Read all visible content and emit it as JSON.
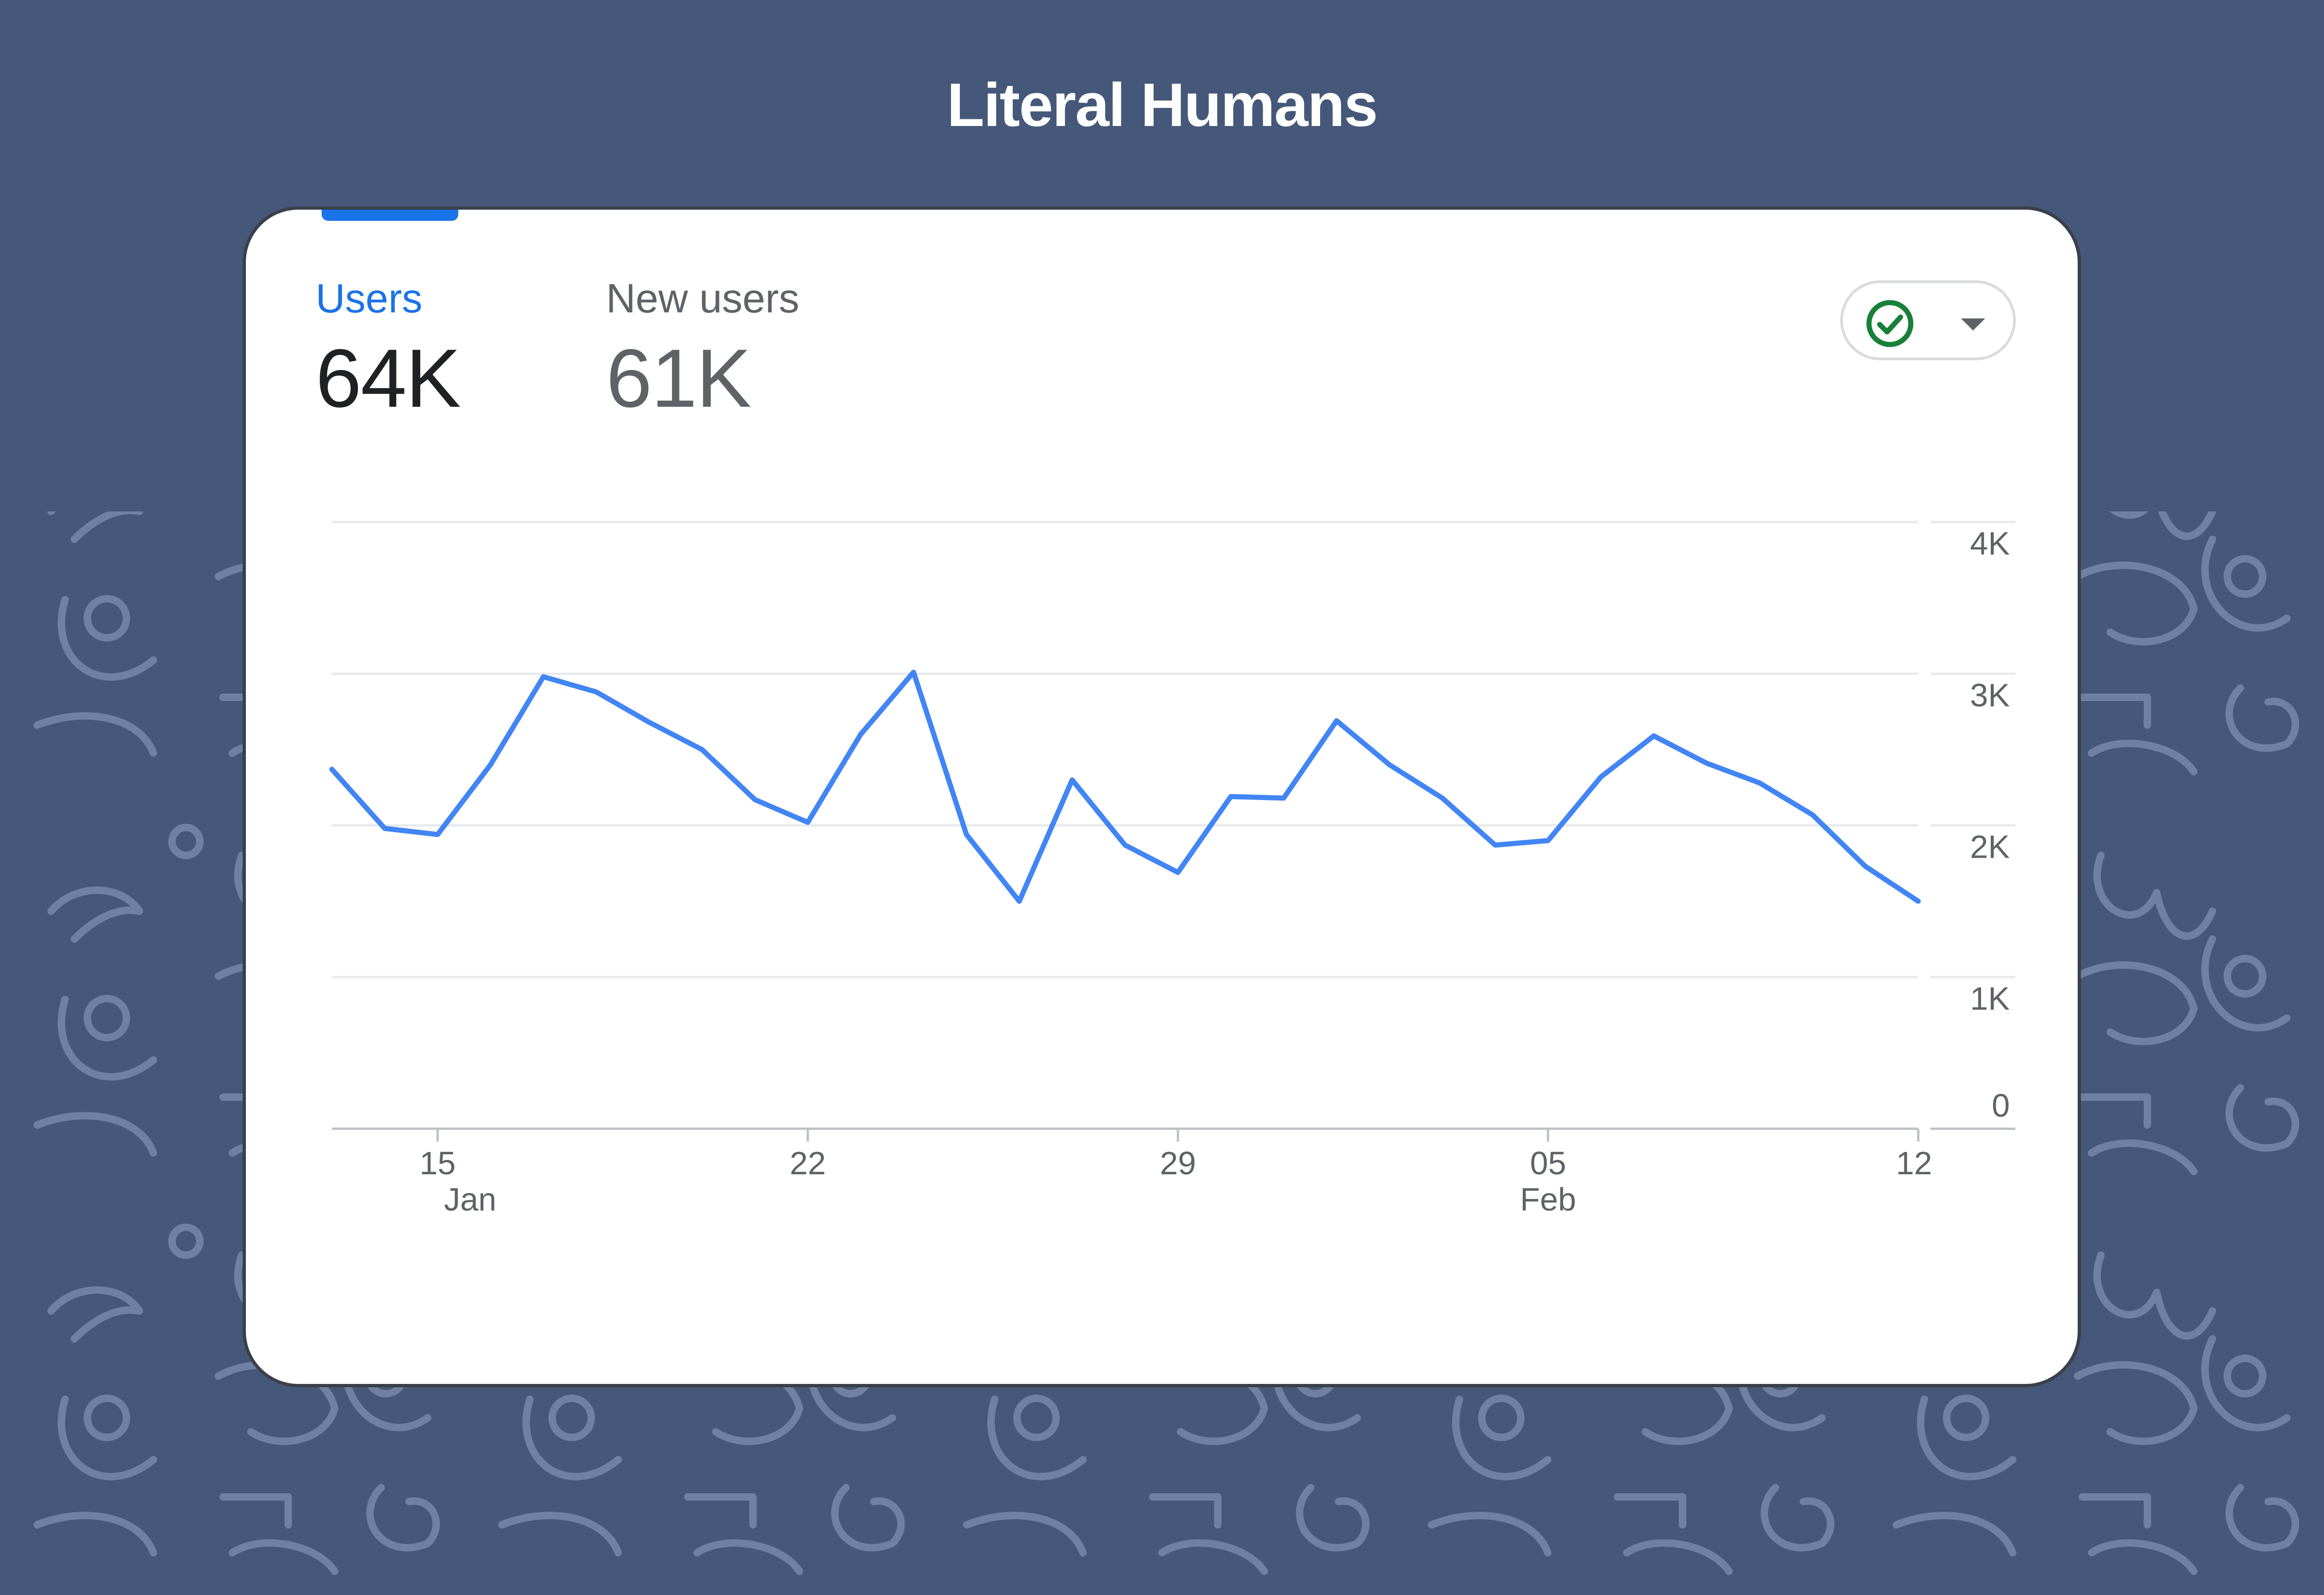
{
  "title": "Literal Humans",
  "metrics": {
    "users": {
      "label": "Users",
      "value": "64K"
    },
    "new_users": {
      "label": "New users",
      "value": "61K"
    }
  },
  "colors": {
    "background": "#465879",
    "accent": "#1a73e8",
    "line": "#4285f4",
    "check": "#188038"
  },
  "icons": {
    "status": "check-circle-icon",
    "dropdown": "caret-down-icon"
  },
  "chart_data": {
    "type": "line",
    "title": "",
    "xlabel": "",
    "ylabel": "",
    "ylim": [
      0,
      4000
    ],
    "grid": true,
    "y_axis_position": "right",
    "y_ticks": [
      {
        "value": 0,
        "label": "0"
      },
      {
        "value": 1000,
        "label": "1K"
      },
      {
        "value": 2000,
        "label": "2K"
      },
      {
        "value": 3000,
        "label": "3K"
      },
      {
        "value": 4000,
        "label": "4K"
      }
    ],
    "x_ticks": [
      {
        "x": 2,
        "day": "15",
        "month": "Jan"
      },
      {
        "x": 9,
        "day": "22",
        "month": ""
      },
      {
        "x": 16,
        "day": "29",
        "month": ""
      },
      {
        "x": 23,
        "day": "05",
        "month": "Feb"
      },
      {
        "x": 30,
        "day": "12",
        "month": ""
      }
    ],
    "x": [
      0,
      1,
      2,
      3,
      4,
      5,
      6,
      7,
      8,
      9,
      10,
      11,
      12,
      13,
      14,
      15,
      16,
      17,
      18,
      19,
      20,
      21,
      22,
      23,
      24,
      25,
      26,
      27,
      28,
      29,
      30
    ],
    "series": [
      {
        "name": "",
        "values": [
          2370,
          1980,
          1940,
          2400,
          2980,
          2880,
          2680,
          2500,
          2170,
          2020,
          2600,
          3010,
          1940,
          1500,
          2300,
          1870,
          1690,
          2190,
          2180,
          2690,
          2400,
          2180,
          1870,
          1900,
          2320,
          2590,
          2410,
          2280,
          2070,
          1730,
          1500
        ]
      }
    ]
  }
}
